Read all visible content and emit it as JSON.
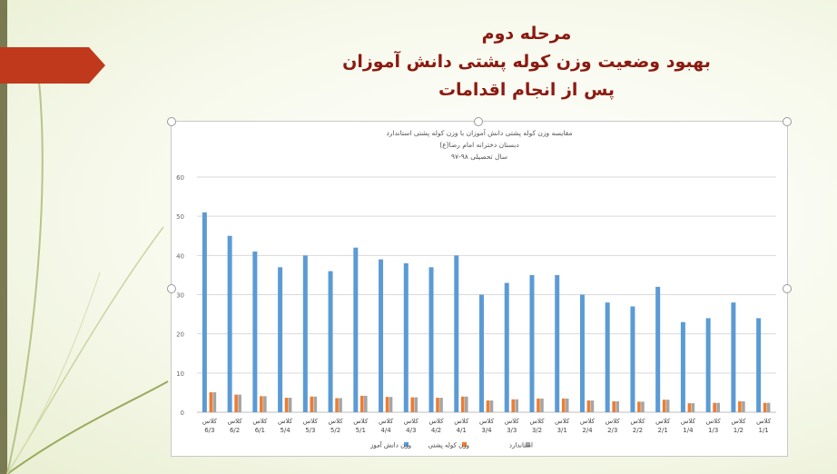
{
  "slide": {
    "title_lines": [
      "مرحله دوم",
      "بهبود وضعیت وزن کوله پشتی دانش آموزان",
      "پس از انجام اقدامات"
    ]
  },
  "colors": {
    "title": "#8b1a10",
    "student_weight": "#5b9bd5",
    "backpack_weight": "#ed7d31",
    "standard": "#a5a5a5",
    "arrow": "#c0391d"
  },
  "chart_data": {
    "type": "bar",
    "title": "مقایسه وزن کوله پشتی دانش آموزان با وزن کوله پشتی استاندارد",
    "subtitle_1": "دبستان دخترانه امام رضا(ع)",
    "subtitle_2": "سال تحصیلی ۹۸-۹۷",
    "categories": [
      [
        "کلاس",
        "6/3"
      ],
      [
        "کلاس",
        "6/2"
      ],
      [
        "کلاس",
        "6/1"
      ],
      [
        "کلاس",
        "5/4"
      ],
      [
        "کلاس",
        "5/3"
      ],
      [
        "کلاس",
        "5/2"
      ],
      [
        "کلاس",
        "5/1"
      ],
      [
        "کلاس",
        "4/4"
      ],
      [
        "کلاس",
        "4/3"
      ],
      [
        "کلاس",
        "4/2"
      ],
      [
        "کلاس",
        "4/1"
      ],
      [
        "کلاس",
        "3/4"
      ],
      [
        "کلاس",
        "3/3"
      ],
      [
        "کلاس",
        "3/2"
      ],
      [
        "کلاس",
        "3/1"
      ],
      [
        "کلاس",
        "2/4"
      ],
      [
        "کلاس",
        "2/3"
      ],
      [
        "کلاس",
        "2/2"
      ],
      [
        "کلاس",
        "2/1"
      ],
      [
        "کلاس",
        "1/4"
      ],
      [
        "کلاس",
        "1/3"
      ],
      [
        "کلاس",
        "1/2"
      ],
      [
        "کلاس",
        "1/1"
      ]
    ],
    "series": [
      {
        "name": "وزن دانش آموز",
        "color": "#5b9bd5",
        "values": [
          51,
          45,
          41,
          37,
          40,
          36,
          42,
          39,
          38,
          37,
          40,
          30,
          33,
          35,
          35,
          30,
          28,
          27,
          32,
          23,
          24,
          28,
          24
        ]
      },
      {
        "name": "وزن کوله پشتی",
        "color": "#ed7d31",
        "values": [
          5.1,
          4.5,
          4.1,
          3.7,
          4.0,
          3.6,
          4.2,
          3.9,
          3.8,
          3.7,
          4.0,
          3.0,
          3.3,
          3.5,
          3.5,
          3.0,
          2.8,
          2.7,
          3.2,
          2.3,
          2.4,
          2.8,
          2.4
        ]
      },
      {
        "name": "استاندارد",
        "color": "#a5a5a5",
        "values": [
          5.1,
          4.5,
          4.1,
          3.7,
          4.0,
          3.6,
          4.2,
          3.9,
          3.8,
          3.7,
          4.0,
          3.0,
          3.3,
          3.5,
          3.5,
          3.0,
          2.8,
          2.7,
          3.2,
          2.3,
          2.4,
          2.8,
          2.4
        ]
      }
    ],
    "yticks": [
      "0",
      "10",
      "20",
      "30",
      "40",
      "50",
      "60"
    ],
    "ylim": [
      0,
      60
    ],
    "grid": true,
    "legend_position": "bottom"
  }
}
